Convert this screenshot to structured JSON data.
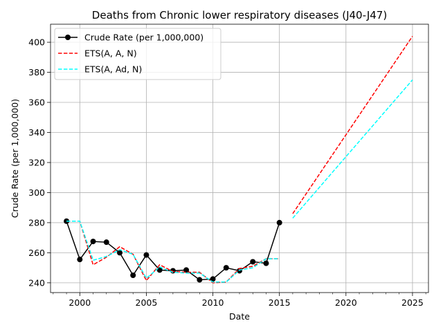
{
  "chart_data": {
    "type": "line",
    "title": "Deaths from Chronic lower respiratory diseases (J40-J47)",
    "xlabel": "Date",
    "ylabel": "Crude Rate (per 1,000,000)",
    "xlim": [
      1997.8,
      2026.2
    ],
    "ylim": [
      233.5,
      412
    ],
    "xticks": [
      2000,
      2005,
      2010,
      2015,
      2020,
      2025
    ],
    "yticks": [
      240,
      260,
      280,
      300,
      320,
      340,
      360,
      380,
      400
    ],
    "grid": true,
    "legend_position": "top-left",
    "series": [
      {
        "name": "Crude Rate (per 1,000,000)",
        "color": "#000000",
        "style": "solid-marker",
        "x": [
          1999,
          2000,
          2001,
          2002,
          2003,
          2004,
          2005,
          2006,
          2007,
          2008,
          2009,
          2010,
          2011,
          2012,
          2013,
          2014,
          2015
        ],
        "y": [
          281,
          255.5,
          267.5,
          267,
          260,
          245,
          258.5,
          248.5,
          248,
          248.5,
          242,
          242.5,
          250,
          248,
          254,
          253,
          280
        ]
      },
      {
        "name": "ETS(A,A,N)",
        "legend_html": [
          "ETS",
          "(",
          "A",
          ", ",
          "A",
          ", ",
          "N",
          ")"
        ],
        "color": "#ff0000",
        "style": "dashed",
        "x": [
          1999,
          2000,
          2001,
          2002,
          2003,
          2004,
          2005,
          2006,
          2007,
          2008,
          2009,
          2010,
          2011,
          2012,
          2013,
          2014,
          2015
        ],
        "y": [
          281,
          281,
          252,
          257,
          264,
          259,
          241.5,
          252,
          247.5,
          247,
          247,
          240,
          240.5,
          249.5,
          251,
          256,
          256
        ]
      },
      {
        "name": "ETS(A,A,N) forecast",
        "color": "#ff0000",
        "style": "dashed",
        "x": [
          2016,
          2025
        ],
        "y": [
          286,
          404
        ]
      },
      {
        "name": "ETS(A,Ad,N)",
        "color": "#00ffff",
        "style": "dashed",
        "x": [
          1999,
          2000,
          2001,
          2002,
          2003,
          2004,
          2005,
          2006,
          2007,
          2008,
          2009,
          2010,
          2011,
          2012,
          2013,
          2014,
          2015
        ],
        "y": [
          281,
          281,
          255,
          257.5,
          262,
          259,
          243,
          250.5,
          247,
          246.5,
          246.5,
          240.5,
          240.5,
          248.5,
          250,
          256,
          256
        ]
      },
      {
        "name": "ETS(A,Ad,N) forecast",
        "color": "#00ffff",
        "style": "dashed",
        "x": [
          2016,
          2025
        ],
        "y": [
          283,
          375
        ]
      }
    ],
    "legend": [
      {
        "label": "Crude Rate (per 1,000,000)",
        "color": "#000000",
        "style": "solid-marker"
      },
      {
        "label": "ETS(A, A, N)",
        "color": "#ff0000",
        "style": "dashed"
      },
      {
        "label": "ETS(A, Ad, N)",
        "color": "#00ffff",
        "style": "dashed"
      }
    ]
  }
}
